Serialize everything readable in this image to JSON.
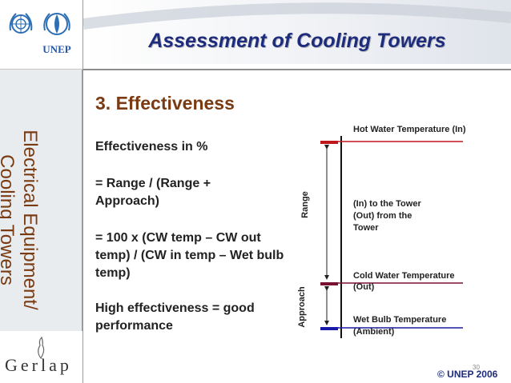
{
  "logo": {
    "unep_text": "UNEP"
  },
  "sidebar": {
    "vertical_title_line1": "Electrical Equipment/",
    "vertical_title_line2": "Cooling Towers",
    "gerlap_text": "Gerlap"
  },
  "slide": {
    "title": "Assessment of Cooling Towers",
    "section_heading": "3. Effectiveness",
    "body": [
      "Effectiveness in %",
      "= Range / (Range + Approach)",
      "= 100 x (CW temp – CW out temp) / (CW in temp – Wet bulb temp)",
      "High effectiveness = good performance"
    ]
  },
  "diagram": {
    "hot_water_label": "Hot Water Temperature (In)",
    "range_label": "Range",
    "in_out_label_1": "(In) to the Tower",
    "in_out_label_2": "(Out) from the",
    "in_out_label_3": "Tower",
    "cold_water_label_1": "Cold Water Temperature",
    "cold_water_label_2": "(Out)",
    "approach_label": "Approach",
    "wet_bulb_label_1": "Wet Bulb Temperature",
    "wet_bulb_label_2": "(Ambient)",
    "colors": {
      "hot": "#c0171d",
      "cold": "#7a1030",
      "wet": "#1a1aa8"
    }
  },
  "footer": {
    "copyright": "© UNEP 2006",
    "page_number": "30"
  }
}
